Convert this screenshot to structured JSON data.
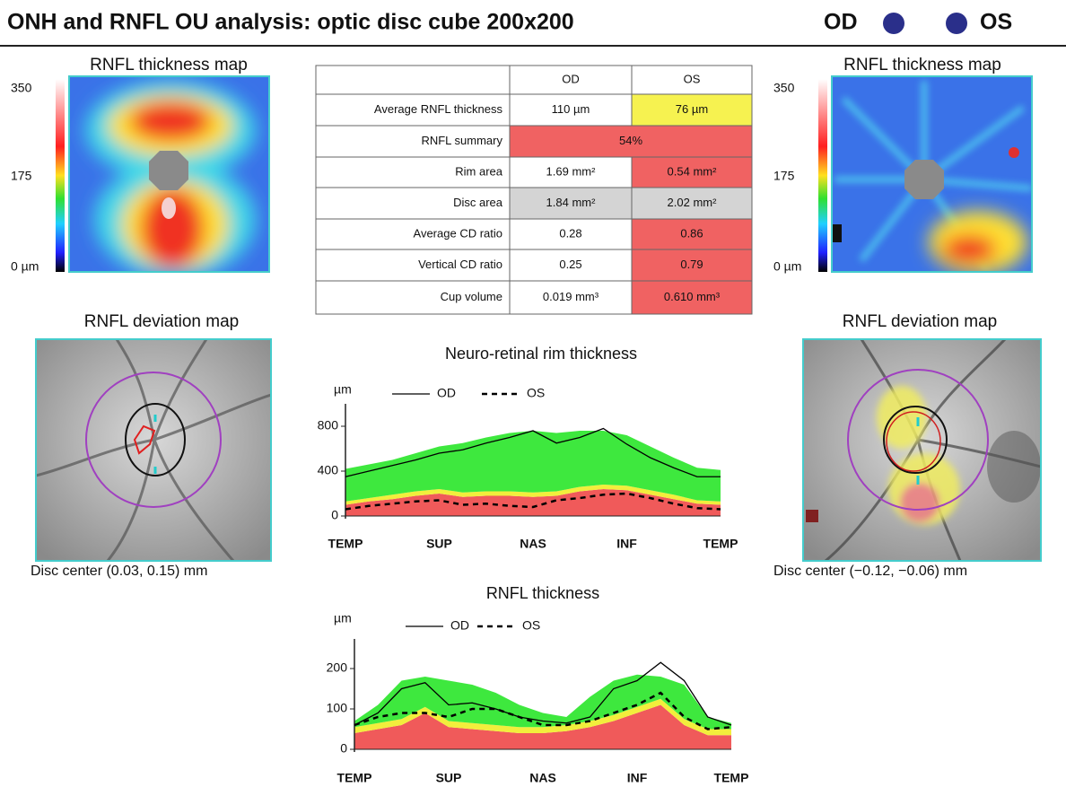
{
  "header": {
    "title": "ONH and RNFL OU analysis: optic disc cube 200x200",
    "od": "OD",
    "os": "OS"
  },
  "left": {
    "map_title": "RNFL thickness map",
    "scale": [
      "350",
      "175",
      "0 µm"
    ],
    "deviation_title": "RNFL deviation map",
    "disc_center": "Disc center (0.03, 0.15) mm"
  },
  "right": {
    "map_title": "RNFL thickness map",
    "scale": [
      "350",
      "175",
      "0 µm"
    ],
    "deviation_title": "RNFL deviation map",
    "disc_center": "Disc center (−0.12, −0.06) mm"
  },
  "table": {
    "columns": [
      "OD",
      "OS"
    ],
    "rows": [
      [
        "Average RNFL thickness",
        "110 µm",
        "76 µm"
      ],
      [
        "RNFL summary",
        "54%"
      ],
      [
        "Rim area",
        "1.69 mm²",
        "0.54 mm²"
      ],
      [
        "Disc area",
        "1.84 mm²",
        "2.02 mm²"
      ],
      [
        "Average CD ratio",
        "0.28",
        "0.86"
      ],
      [
        "Vertical CD ratio",
        "0.25",
        "0.79"
      ],
      [
        "Cup volume",
        "0.019 mm³",
        "0.610 mm³"
      ]
    ]
  },
  "chart_data": [
    {
      "type": "line",
      "title": "Neuro-retinal rim thickness",
      "y_label": "µm",
      "ylim": [
        0,
        880
      ],
      "yticks": [
        0,
        400,
        800
      ],
      "x_labels": [
        "TEMP",
        "SUP",
        "NAS",
        "INF",
        "TEMP"
      ],
      "bands": [
        {
          "color": "#f05a5a",
          "values": [
            100,
            130,
            150,
            180,
            200,
            170,
            180,
            180,
            170,
            180,
            220,
            240,
            230,
            190,
            150,
            110,
            100
          ]
        },
        {
          "color": "#f2ee3c",
          "values": [
            30,
            30,
            40,
            40,
            40,
            40,
            40,
            40,
            40,
            40,
            40,
            40,
            40,
            40,
            40,
            30,
            30
          ]
        },
        {
          "color": "#3ee83e",
          "values": [
            290,
            300,
            310,
            340,
            380,
            440,
            480,
            520,
            550,
            520,
            500,
            480,
            450,
            390,
            330,
            290,
            280
          ]
        }
      ],
      "series": [
        {
          "name": "OD",
          "color": "#000000",
          "dash": false,
          "values": [
            350,
            400,
            450,
            500,
            560,
            590,
            650,
            700,
            760,
            650,
            700,
            780,
            640,
            520,
            430,
            350,
            350
          ]
        },
        {
          "name": "OS",
          "color": "#000000",
          "dash": true,
          "values": [
            60,
            90,
            110,
            130,
            140,
            100,
            110,
            90,
            80,
            140,
            160,
            190,
            200,
            160,
            110,
            70,
            60
          ]
        }
      ]
    },
    {
      "type": "line",
      "title": "RNFL thickness",
      "y_label": "µm",
      "ylim": [
        0,
        240
      ],
      "yticks": [
        0,
        100,
        200
      ],
      "x_labels": [
        "TEMP",
        "SUP",
        "NAS",
        "INF",
        "TEMP"
      ],
      "bands": [
        {
          "color": "#f05a5a",
          "values": [
            40,
            50,
            60,
            90,
            55,
            50,
            45,
            40,
            40,
            45,
            55,
            70,
            90,
            110,
            60,
            35,
            35
          ]
        },
        {
          "color": "#f2ee3c",
          "values": [
            15,
            15,
            15,
            15,
            15,
            15,
            15,
            15,
            15,
            15,
            15,
            15,
            15,
            15,
            15,
            15,
            15
          ]
        },
        {
          "color": "#3ee83e",
          "values": [
            15,
            45,
            95,
            75,
            100,
            95,
            80,
            55,
            35,
            20,
            60,
            85,
            80,
            55,
            85,
            30,
            15
          ]
        }
      ],
      "series": [
        {
          "name": "OD",
          "color": "#000000",
          "dash": false,
          "values": [
            60,
            90,
            150,
            165,
            110,
            115,
            100,
            80,
            70,
            65,
            80,
            150,
            170,
            215,
            170,
            80,
            60
          ]
        },
        {
          "name": "OS",
          "color": "#000000",
          "dash": true,
          "values": [
            60,
            80,
            90,
            90,
            80,
            100,
            100,
            80,
            60,
            60,
            70,
            90,
            110,
            140,
            80,
            50,
            55
          ]
        }
      ]
    }
  ]
}
